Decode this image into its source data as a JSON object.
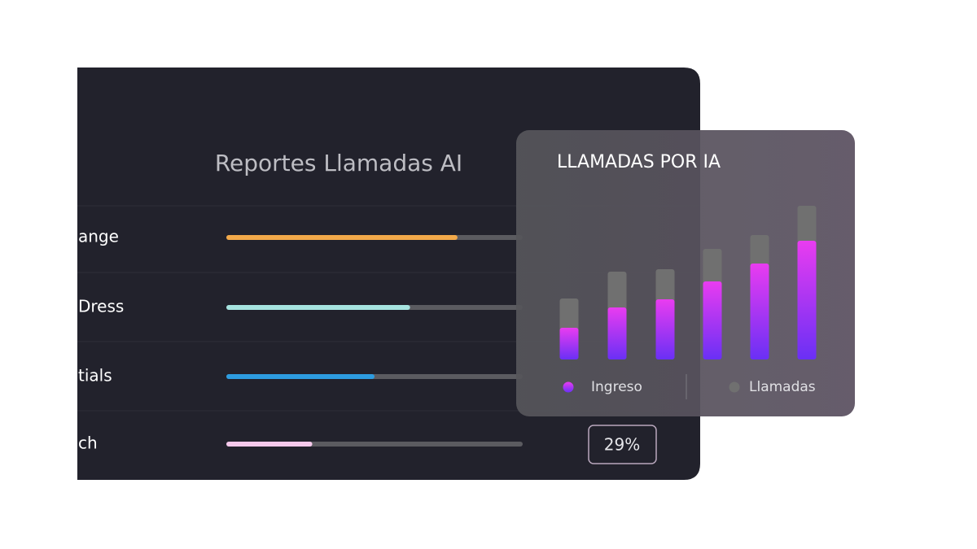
{
  "report": {
    "title": "Reportes Llamadas AI",
    "rows": [
      {
        "label": "ange",
        "progress": 78,
        "color": "#f2a94a"
      },
      {
        "label": " Dress",
        "progress": 62,
        "color": "#a6e3df"
      },
      {
        "label": "tials",
        "progress": 50,
        "color": "#2d9ce0"
      },
      {
        "label": "ch",
        "progress": 29,
        "progress_label": "29%",
        "color": "#f6c9ec"
      }
    ]
  },
  "chart_data": {
    "type": "bar",
    "title": "LLAMADAS POR IA",
    "ylim": [
      0,
      200
    ],
    "series": [
      {
        "name": "Llamadas",
        "color": "#707070",
        "values": [
          75,
          108,
          111,
          136,
          153,
          189
        ]
      },
      {
        "name": "Ingreso",
        "color": "#e23cf5",
        "values": [
          39,
          64,
          74,
          96,
          118,
          146
        ]
      }
    ]
  }
}
